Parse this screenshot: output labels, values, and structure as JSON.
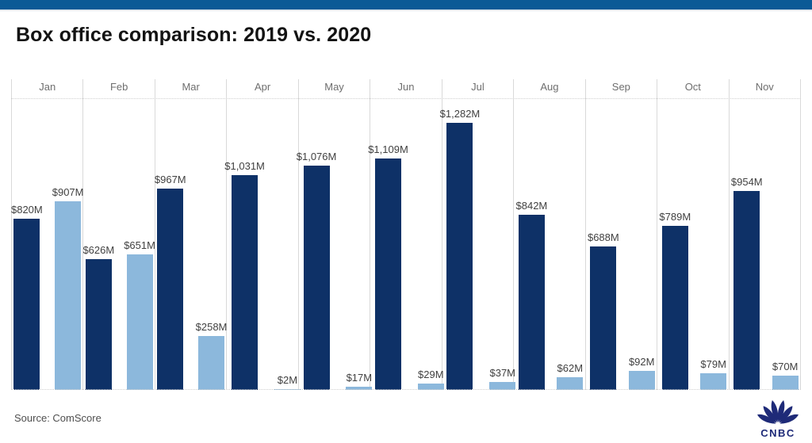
{
  "header": {
    "accent_color": "#0b5a96"
  },
  "chart_data": {
    "type": "bar",
    "title": "Box office comparison: 2019 vs. 2020",
    "categories": [
      "Jan",
      "Feb",
      "Mar",
      "Apr",
      "May",
      "Jun",
      "Jul",
      "Aug",
      "Sep",
      "Oct",
      "Nov"
    ],
    "series": [
      {
        "name": "2019",
        "color": "#0e3167",
        "values": [
          820,
          626,
          967,
          1031,
          1076,
          1109,
          1282,
          842,
          688,
          789,
          954
        ],
        "value_labels": [
          "$820M",
          "$626M",
          "$967M",
          "$1,031M",
          "$1,076M",
          "$1,109M",
          "$1,282M",
          "$842M",
          "$688M",
          "$789M",
          "$954M"
        ]
      },
      {
        "name": "2020",
        "color": "#8cb8dc",
        "values": [
          907,
          651,
          258,
          2,
          17,
          29,
          37,
          62,
          92,
          79,
          70
        ],
        "value_labels": [
          "$907M",
          "$651M",
          "$258M",
          "$2M",
          "$17M",
          "$29M",
          "$37M",
          "$62M",
          "$92M",
          "$79M",
          "$70M"
        ]
      }
    ],
    "ylim": [
      0,
      1400
    ],
    "xlabel": "",
    "ylabel": "",
    "grid": "vertical month dividers, dotted top and baseline",
    "legend": "none"
  },
  "footer": {
    "source": "Source: ComScore",
    "logo_text": "CNBC",
    "logo_color": "#1e2a78"
  }
}
